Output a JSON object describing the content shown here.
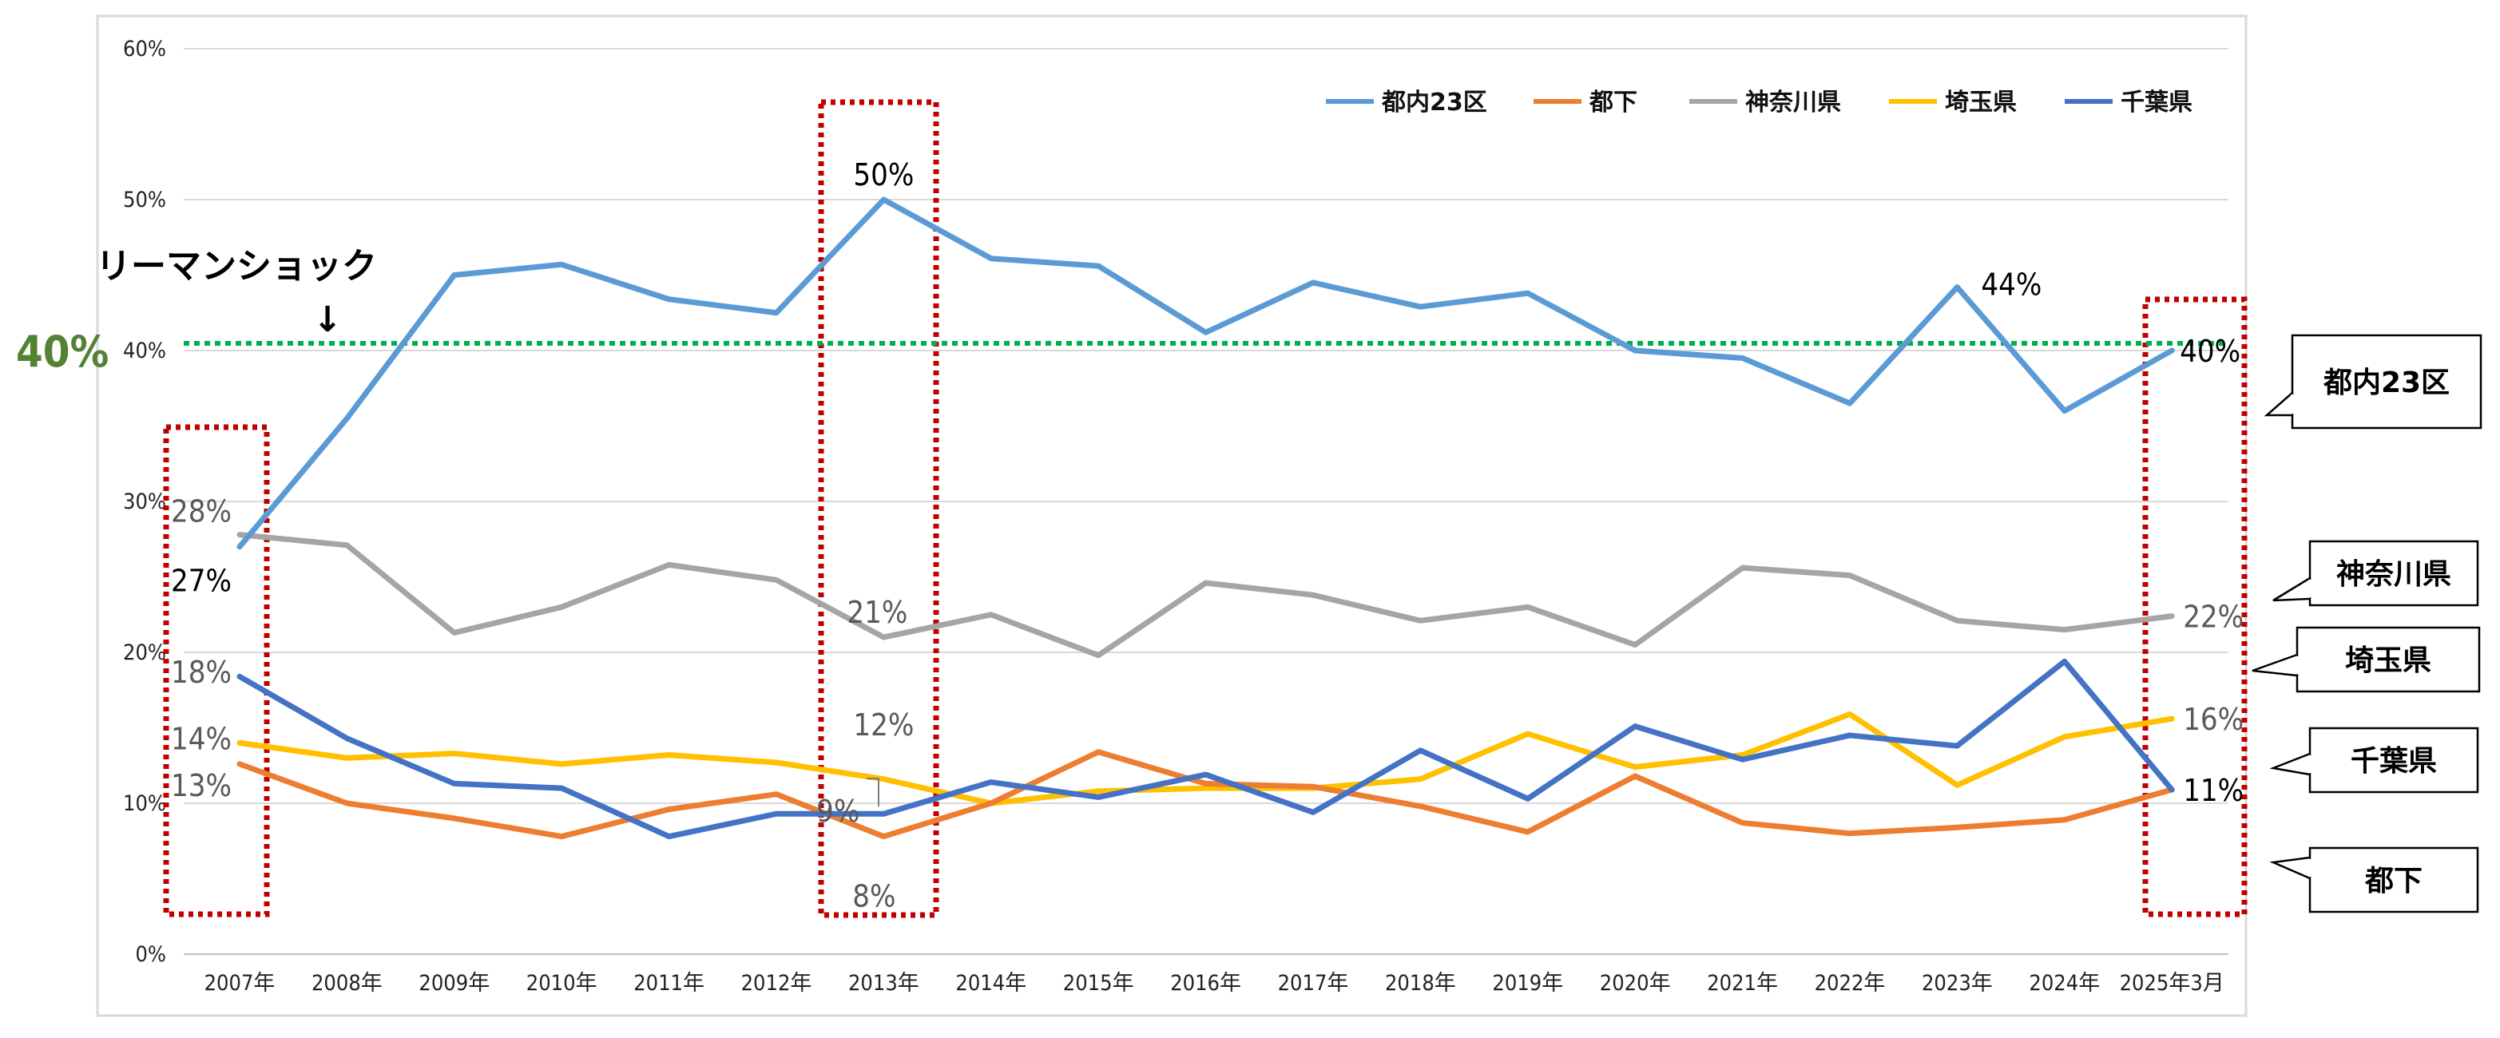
{
  "chart_data": {
    "type": "line",
    "title": "",
    "xlabel": "",
    "ylabel": "",
    "categories": [
      "2007年",
      "2008年",
      "2009年",
      "2010年",
      "2011年",
      "2012年",
      "2013年",
      "2014年",
      "2015年",
      "2016年",
      "2017年",
      "2018年",
      "2019年",
      "2020年",
      "2021年",
      "2022年",
      "2023年",
      "2024年",
      "2025年3月"
    ],
    "y_ticks": [
      "0%",
      "10%",
      "20%",
      "30%",
      "40%",
      "50%",
      "60%"
    ],
    "ylim": [
      0,
      60
    ],
    "grid": true,
    "legend_position": "top-right",
    "series": [
      {
        "name": "都内23区",
        "color": "#5B9BD5",
        "values": [
          27,
          35.5,
          45,
          45.7,
          43.4,
          42.5,
          50,
          46.1,
          45.6,
          41.2,
          44.5,
          42.9,
          43.8,
          40,
          39.5,
          36.5,
          44.2,
          36,
          40
        ]
      },
      {
        "name": "都下",
        "color": "#ED7D31",
        "values": [
          12.6,
          10,
          9,
          7.8,
          9.6,
          10.6,
          7.8,
          10,
          13.4,
          11.3,
          11.1,
          9.8,
          8.1,
          11.8,
          8.7,
          8,
          8.4,
          8.9,
          10.9
        ]
      },
      {
        "name": "神奈川県",
        "color": "#A5A5A5",
        "values": [
          27.8,
          27.1,
          21.3,
          23,
          25.8,
          24.8,
          21,
          22.5,
          19.8,
          24.6,
          23.8,
          22.1,
          23,
          20.5,
          25.6,
          25.1,
          22.1,
          21.5,
          22.4
        ]
      },
      {
        "name": "埼玉県",
        "color": "#FFC000",
        "values": [
          14,
          13,
          13.3,
          12.6,
          13.2,
          12.7,
          11.6,
          10,
          10.8,
          11,
          11,
          11.6,
          14.6,
          12.4,
          13.2,
          15.9,
          11.2,
          14.4,
          15.6
        ]
      },
      {
        "name": "千葉県",
        "color": "#4472C4",
        "values": [
          18.4,
          14.3,
          11.3,
          11,
          7.8,
          9.3,
          9.3,
          11.4,
          10.4,
          11.9,
          9.4,
          13.5,
          10.3,
          15.1,
          12.9,
          14.5,
          13.8,
          19.4,
          10.9
        ]
      }
    ],
    "data_labels": [
      {
        "text": "28%",
        "series": "神奈川県",
        "index": 0
      },
      {
        "text": "27%",
        "series": "都内23区",
        "index": 0
      },
      {
        "text": "18%",
        "series": "千葉県",
        "index": 0
      },
      {
        "text": "14%",
        "series": "埼玉県",
        "index": 0
      },
      {
        "text": "13%",
        "series": "都下",
        "index": 0
      },
      {
        "text": "50%",
        "series": "都内23区",
        "index": 6
      },
      {
        "text": "21%",
        "series": "神奈川県",
        "index": 6
      },
      {
        "text": "12%",
        "series": "埼玉県",
        "index": 6
      },
      {
        "text": "9%",
        "series": "千葉県",
        "index": 6
      },
      {
        "text": "8%",
        "series": "都下",
        "index": 6
      },
      {
        "text": "44%",
        "series": "都内23区",
        "index": 16
      },
      {
        "text": "40%",
        "series": "都内23区",
        "index": 18
      },
      {
        "text": "22%",
        "series": "神奈川県",
        "index": 18
      },
      {
        "text": "16%",
        "series": "埼玉県",
        "index": 18
      },
      {
        "text": "11%",
        "series": "千葉県",
        "index": 18
      }
    ],
    "reference_line": {
      "value": 40,
      "label": "40%",
      "color": "#00B050"
    },
    "annotation": {
      "text": "リーマンショック",
      "arrow": "↓"
    },
    "callouts": [
      "都内23区",
      "神奈川県",
      "埼玉県",
      "千葉県",
      "都下"
    ]
  }
}
